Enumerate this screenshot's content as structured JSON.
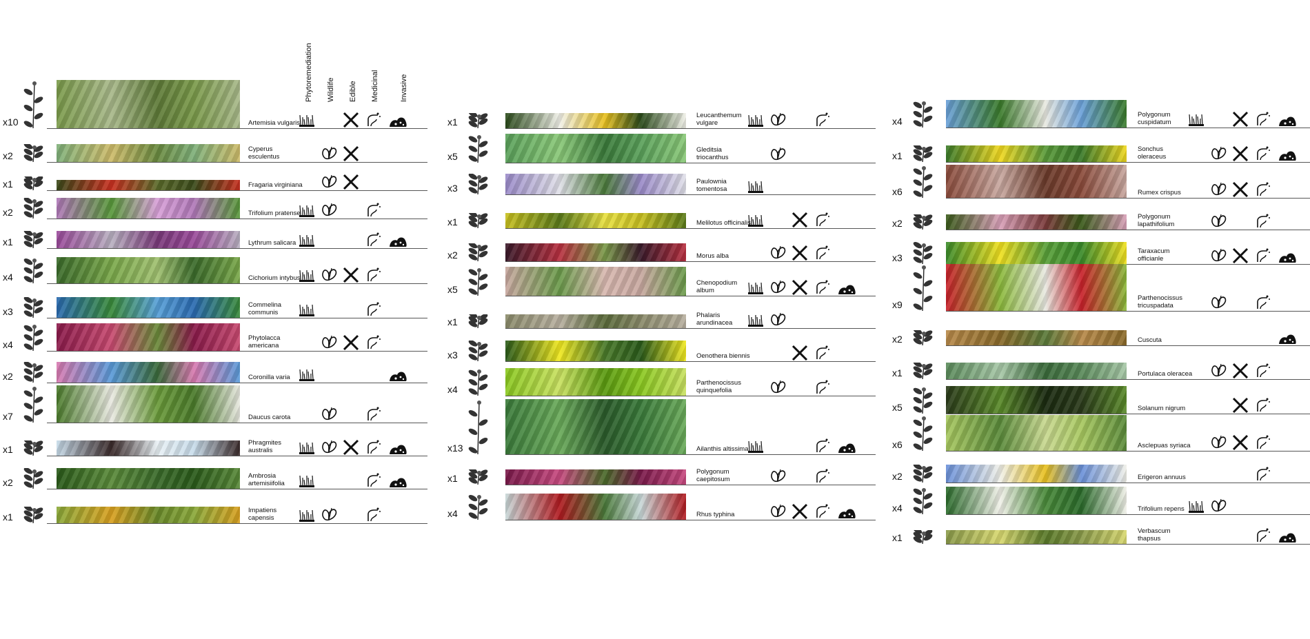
{
  "headers": [
    "Phytoremediation",
    "Wildlife",
    "Edible",
    "Medicinal",
    "Invasive"
  ],
  "columns": [
    {
      "rows": [
        {
          "count": "x10",
          "name": "Artemisia vulgaris",
          "icons": [
            1,
            0,
            1,
            1,
            1
          ],
          "colors": [
            "#7a9a4a",
            "#a8b88a",
            "#5e7a38"
          ]
        },
        {
          "count": "x2",
          "name": "Cyperus esculentus",
          "icons": [
            0,
            1,
            1,
            0,
            0
          ],
          "colors": [
            "#7fb07a",
            "#cdbb6a",
            "#6a8a40"
          ]
        },
        {
          "count": "x1",
          "name": "Fragaria virginiana",
          "icons": [
            0,
            1,
            1,
            0,
            0
          ],
          "colors": [
            "#3a4a1a",
            "#c83020",
            "#5a6a2a"
          ]
        },
        {
          "count": "x2",
          "name": "Trifolium pratense",
          "icons": [
            1,
            1,
            0,
            1,
            0
          ],
          "colors": [
            "#b078b8",
            "#58983a",
            "#d8a0d8"
          ]
        },
        {
          "count": "x1",
          "name": "Lythrum salicara",
          "icons": [
            1,
            0,
            0,
            1,
            1
          ],
          "colors": [
            "#9a4a9a",
            "#b8b0c0",
            "#7a3a7a"
          ]
        },
        {
          "count": "x4",
          "name": "Cichorium intybus",
          "icons": [
            1,
            1,
            1,
            1,
            0
          ],
          "colors": [
            "#3a6a2a",
            "#7aa84a",
            "#a0c070"
          ]
        },
        {
          "count": "x3",
          "name": "Commelina communis",
          "icons": [
            1,
            0,
            0,
            1,
            0
          ],
          "colors": [
            "#2a6ab0",
            "#3a8a3a",
            "#58a0d8"
          ]
        },
        {
          "count": "x4",
          "name": "Phytolacca americana",
          "icons": [
            0,
            1,
            1,
            1,
            0
          ],
          "colors": [
            "#8a1a4a",
            "#c84a70",
            "#6a8a3a"
          ]
        },
        {
          "count": "x2",
          "name": "Coronilla varia",
          "icons": [
            1,
            0,
            0,
            0,
            1
          ],
          "colors": [
            "#d87ab0",
            "#5a9ad8",
            "#3a6a3a"
          ]
        },
        {
          "count": "x7",
          "name": "Daucus carota",
          "icons": [
            0,
            1,
            0,
            1,
            0
          ],
          "colors": [
            "#4a7a2a",
            "#e8e8e0",
            "#6a9a3a"
          ]
        },
        {
          "count": "x1",
          "name": "Phragmites australis",
          "icons": [
            1,
            1,
            1,
            1,
            1
          ],
          "colors": [
            "#c8dcea",
            "#3a2a2a",
            "#e8f0f4"
          ]
        },
        {
          "count": "x2",
          "name": "Ambrosia artemisiifolia",
          "icons": [
            1,
            0,
            0,
            1,
            1
          ],
          "colors": [
            "#2a5a1a",
            "#5a8a3a",
            "#3a6a2a"
          ]
        },
        {
          "count": "x1",
          "name": "Impatiens capensis",
          "icons": [
            1,
            1,
            0,
            1,
            0
          ],
          "colors": [
            "#8aa83a",
            "#d8a020",
            "#6a8a2a"
          ]
        }
      ]
    },
    {
      "rows": [
        {
          "count": "x1",
          "name": "Leucanthemum vulgare",
          "icons": [
            1,
            1,
            0,
            1,
            0
          ],
          "colors": [
            "#2a4a1a",
            "#f0f0e8",
            "#e8c020"
          ]
        },
        {
          "count": "x5",
          "name": "Gleditsia triocanthus",
          "icons": [
            0,
            1,
            0,
            0,
            0
          ],
          "colors": [
            "#5aa05a",
            "#8ac878",
            "#3a7a3a"
          ]
        },
        {
          "count": "x3",
          "name": "Paulownia tomentosa",
          "icons": [
            1,
            0,
            0,
            0,
            0
          ],
          "colors": [
            "#9a8ac8",
            "#e0e0e8",
            "#4a7a3a"
          ]
        },
        {
          "count": "x1",
          "name": "Melilotus officinalis",
          "icons": [
            1,
            0,
            1,
            1,
            0
          ],
          "colors": [
            "#c8c020",
            "#5a7a1a",
            "#e8e040"
          ]
        },
        {
          "count": "x2",
          "name": "Morus alba",
          "icons": [
            0,
            1,
            1,
            1,
            0
          ],
          "colors": [
            "#3a1a2a",
            "#b83040",
            "#7a9a4a"
          ]
        },
        {
          "count": "x5",
          "name": "Chenopodium album",
          "icons": [
            1,
            1,
            1,
            1,
            1
          ],
          "colors": [
            "#c8a8a0",
            "#6a9a4a",
            "#d8b8b0"
          ]
        },
        {
          "count": "x1",
          "name": "Phalaris arundinacea",
          "icons": [
            1,
            1,
            0,
            0,
            0
          ],
          "colors": [
            "#8a8a6a",
            "#b8b0a0",
            "#5a6a3a"
          ]
        },
        {
          "count": "x3",
          "name": "Oenothera biennis",
          "icons": [
            0,
            0,
            1,
            1,
            0
          ],
          "colors": [
            "#2a5a1a",
            "#f0e820",
            "#4a7a2a"
          ]
        },
        {
          "count": "x4",
          "name": "Parthenocissus quinquefolia",
          "icons": [
            0,
            1,
            0,
            1,
            0
          ],
          "colors": [
            "#8ac820",
            "#c8e060",
            "#5a9a10"
          ]
        },
        {
          "count": "x13",
          "name": "Ailanthis altissima",
          "icons": [
            1,
            0,
            0,
            1,
            1
          ],
          "colors": [
            "#3a7a3a",
            "#6aaa5a",
            "#2a5a2a"
          ]
        },
        {
          "count": "x1",
          "name": "Polygonum caepitosum",
          "icons": [
            0,
            1,
            0,
            1,
            0
          ],
          "colors": [
            "#7a1a4a",
            "#c84a80",
            "#4a6a2a"
          ]
        },
        {
          "count": "x4",
          "name": "Rhus typhina",
          "icons": [
            0,
            1,
            1,
            1,
            1
          ],
          "colors": [
            "#c8d8d8",
            "#b01a20",
            "#4a7a3a"
          ]
        }
      ]
    },
    {
      "rows": [
        {
          "count": "x4",
          "name": "Polygonum cuspidatum",
          "icons": [
            1,
            0,
            1,
            1,
            1
          ],
          "colors": [
            "#6aa0d8",
            "#3a7a2a",
            "#e8e8e0"
          ]
        },
        {
          "count": "x1",
          "name": "Sonchus oleraceus",
          "icons": [
            0,
            1,
            1,
            1,
            1
          ],
          "colors": [
            "#3a7a2a",
            "#f0d820",
            "#5a9a3a"
          ]
        },
        {
          "count": "x6",
          "name": "Rumex crispus",
          "icons": [
            0,
            1,
            1,
            1,
            0
          ],
          "colors": [
            "#8a4a3a",
            "#c8a8a0",
            "#6a3a2a"
          ]
        },
        {
          "count": "x2",
          "name": "Polygonum lapathifolium",
          "icons": [
            0,
            1,
            0,
            1,
            0
          ],
          "colors": [
            "#3a5a1a",
            "#d8a0b8",
            "#7a3a3a"
          ]
        },
        {
          "count": "x3",
          "name": "Taraxacum officianle",
          "icons": [
            0,
            1,
            1,
            1,
            1
          ],
          "colors": [
            "#3a8a2a",
            "#f0e020",
            "#5aa03a"
          ]
        },
        {
          "count": "x9",
          "name": "Parthenocissus tricuspadata",
          "icons": [
            0,
            1,
            0,
            1,
            0
          ],
          "colors": [
            "#c8202a",
            "#8ab83a",
            "#e8e8e0"
          ]
        },
        {
          "count": "x2",
          "name": "Cuscuta",
          "icons": [
            0,
            0,
            0,
            0,
            1
          ],
          "colors": [
            "#b88a4a",
            "#8a6a2a",
            "#5a7a3a"
          ]
        },
        {
          "count": "x1",
          "name": "Portulaca oleracea",
          "icons": [
            0,
            1,
            1,
            1,
            0
          ],
          "colors": [
            "#5a8a5a",
            "#a8c8a8",
            "#3a6a3a"
          ]
        },
        {
          "count": "x5",
          "name": "Solanum nigrum",
          "icons": [
            0,
            0,
            1,
            1,
            0
          ],
          "colors": [
            "#2a3a1a",
            "#5a8a2a",
            "#1a2a10"
          ]
        },
        {
          "count": "x6",
          "name": "Asclepuas syriaca",
          "icons": [
            0,
            1,
            1,
            1,
            0
          ],
          "colors": [
            "#a8c860",
            "#5a8a3a",
            "#c8d890"
          ]
        },
        {
          "count": "x2",
          "name": "Erigeron annuus",
          "icons": [
            0,
            0,
            0,
            1,
            0
          ],
          "colors": [
            "#6a90d8",
            "#f0f0e8",
            "#e8c020"
          ]
        },
        {
          "count": "x4",
          "name": "Trifolium repens",
          "icons": [
            1,
            1,
            0,
            0,
            0
          ],
          "colors": [
            "#2a6a2a",
            "#f0f0e8",
            "#4a8a3a"
          ]
        },
        {
          "count": "x1",
          "name": "Verbascum thapsus",
          "icons": [
            0,
            0,
            0,
            1,
            1
          ],
          "colors": [
            "#8a9a4a",
            "#d8d870",
            "#5a7a2a"
          ]
        }
      ]
    }
  ]
}
